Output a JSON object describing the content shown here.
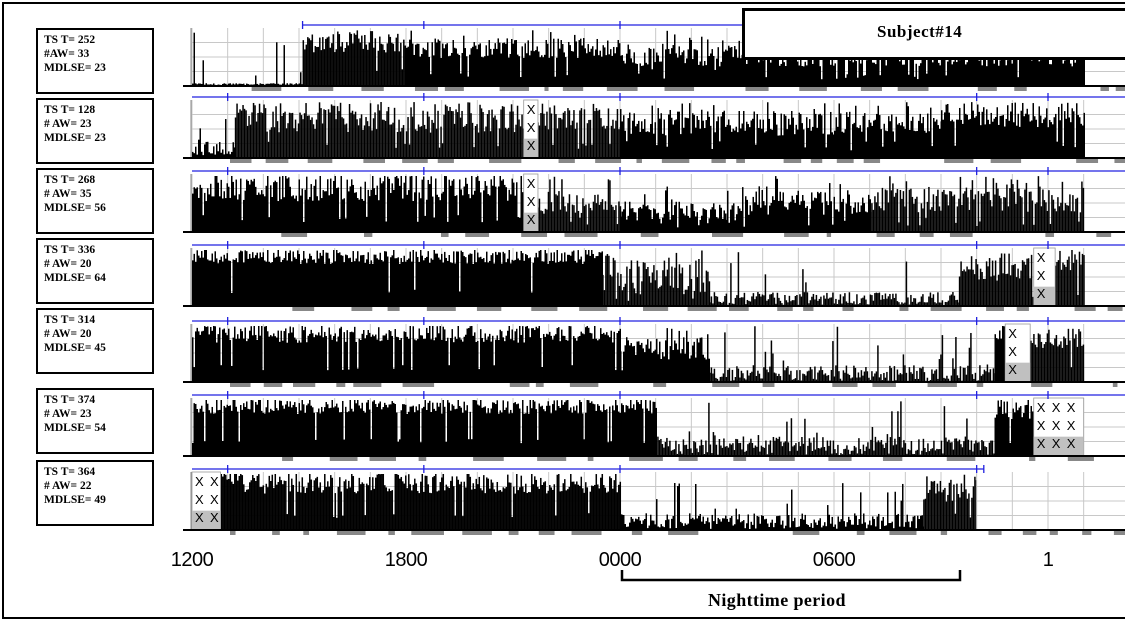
{
  "title": "Subject#14",
  "nighttime_label": "Nighttime period",
  "x_tick_labels": [
    "1200",
    "1800",
    "0000",
    "0600",
    "1"
  ],
  "rows": [
    {
      "tst": "TS T= 252",
      "aw": "#AW= 33",
      "mdlse": "MDLSE= 23"
    },
    {
      "tst": "TS T= 128",
      "aw": "# AW= 23",
      "mdlse": "MDLSE= 23"
    },
    {
      "tst": "TS T= 268",
      "aw": "# AW= 35",
      "mdlse": "MDLSE= 56"
    },
    {
      "tst": "TS T= 336",
      "aw": "# AW= 20",
      "mdlse": "MDLSE= 64"
    },
    {
      "tst": "TS T= 314",
      "aw": "# AW= 20",
      "mdlse": "MDLSE= 45"
    },
    {
      "tst": "TS T= 374",
      "aw": "# AW= 23",
      "mdlse": "MDLSE= 54"
    },
    {
      "tst": "TS T= 364",
      "aw": "# AW= 22",
      "mdlse": "MDLSE= 49"
    }
  ],
  "colors": {
    "activity": "#000000",
    "grid": "#c8c8c8",
    "sleep_marker": "#888888",
    "period_line": "#2020e0",
    "missing_fill": "#c0c0c0"
  },
  "chart_data": {
    "type": "bar",
    "title": "Subject#14",
    "x_unit": "clock time (hours)",
    "x_range": [
      12,
      37
    ],
    "x_tick_values": [
      12,
      18,
      24,
      30,
      36
    ],
    "x_tick_labels": [
      "1200",
      "1800",
      "0000",
      "0600",
      "1"
    ],
    "nighttime_period": [
      24,
      34
    ],
    "grid": true,
    "rows": [
      {
        "tst": 252,
        "aw": 33,
        "mdlse": 23,
        "segments": [
          [
            12,
            15.1,
            0.02,
            0.05
          ],
          [
            15.1,
            18.0,
            0.6,
            0.95
          ],
          [
            18.0,
            24.0,
            0.5,
            0.85
          ],
          [
            24.0,
            37.0,
            0.35,
            0.75
          ]
        ],
        "missing": []
      },
      {
        "tst": 128,
        "aw": 23,
        "mdlse": 23,
        "segments": [
          [
            12,
            13.2,
            0.05,
            0.3
          ],
          [
            13.2,
            21.3,
            0.45,
            0.95
          ],
          [
            21.3,
            24.0,
            0.5,
            0.9
          ],
          [
            24.0,
            30.0,
            0.4,
            0.85
          ],
          [
            30.0,
            33.0,
            0.45,
            0.85
          ],
          [
            33.0,
            37.0,
            0.55,
            0.95
          ]
        ],
        "missing": [
          [
            21.3,
            21.7
          ]
        ]
      },
      {
        "tst": 268,
        "aw": 35,
        "mdlse": 56,
        "segments": [
          [
            12,
            21.3,
            0.55,
            1.0
          ],
          [
            21.3,
            24.0,
            0.3,
            0.7
          ],
          [
            24.0,
            27.0,
            0.2,
            0.55
          ],
          [
            27.0,
            31.0,
            0.3,
            0.75
          ],
          [
            31.0,
            37.0,
            0.35,
            0.8
          ]
        ],
        "missing": [
          [
            21.3,
            21.7
          ]
        ]
      },
      {
        "tst": 336,
        "aw": 20,
        "mdlse": 64,
        "segments": [
          [
            12,
            23.5,
            0.75,
            1.0
          ],
          [
            23.5,
            26.5,
            0.25,
            0.85
          ],
          [
            26.5,
            33.5,
            0.02,
            0.25
          ],
          [
            33.5,
            35.6,
            0.45,
            0.9
          ],
          [
            35.6,
            37.0,
            0.6,
            1.0
          ]
        ],
        "missing": [
          [
            35.6,
            36.2
          ]
        ]
      },
      {
        "tst": 314,
        "aw": 20,
        "mdlse": 45,
        "segments": [
          [
            12,
            24.0,
            0.7,
            1.0
          ],
          [
            24.0,
            26.5,
            0.4,
            0.8
          ],
          [
            26.5,
            34.5,
            0.02,
            0.3
          ],
          [
            34.5,
            35.5,
            0.7,
            1.0
          ],
          [
            35.5,
            37.0,
            0.6,
            0.95
          ]
        ],
        "missing": [
          [
            34.8,
            35.5
          ]
        ]
      },
      {
        "tst": 374,
        "aw": 23,
        "mdlse": 54,
        "segments": [
          [
            12,
            25.0,
            0.75,
            1.0
          ],
          [
            25.0,
            34.5,
            0.02,
            0.35
          ],
          [
            34.5,
            35.6,
            0.65,
            1.0
          ]
        ],
        "missing": [
          [
            35.6,
            37.0
          ]
        ]
      },
      {
        "tst": 364,
        "aw": 22,
        "mdlse": 49,
        "segments": [
          [
            12.8,
            24.0,
            0.65,
            1.0
          ],
          [
            24.0,
            32.5,
            0.02,
            0.3
          ],
          [
            32.5,
            34.0,
            0.5,
            0.95
          ]
        ],
        "missing": [
          [
            12,
            12.8
          ]
        ],
        "blank": [
          [
            34.0,
            37.0
          ]
        ]
      }
    ]
  }
}
